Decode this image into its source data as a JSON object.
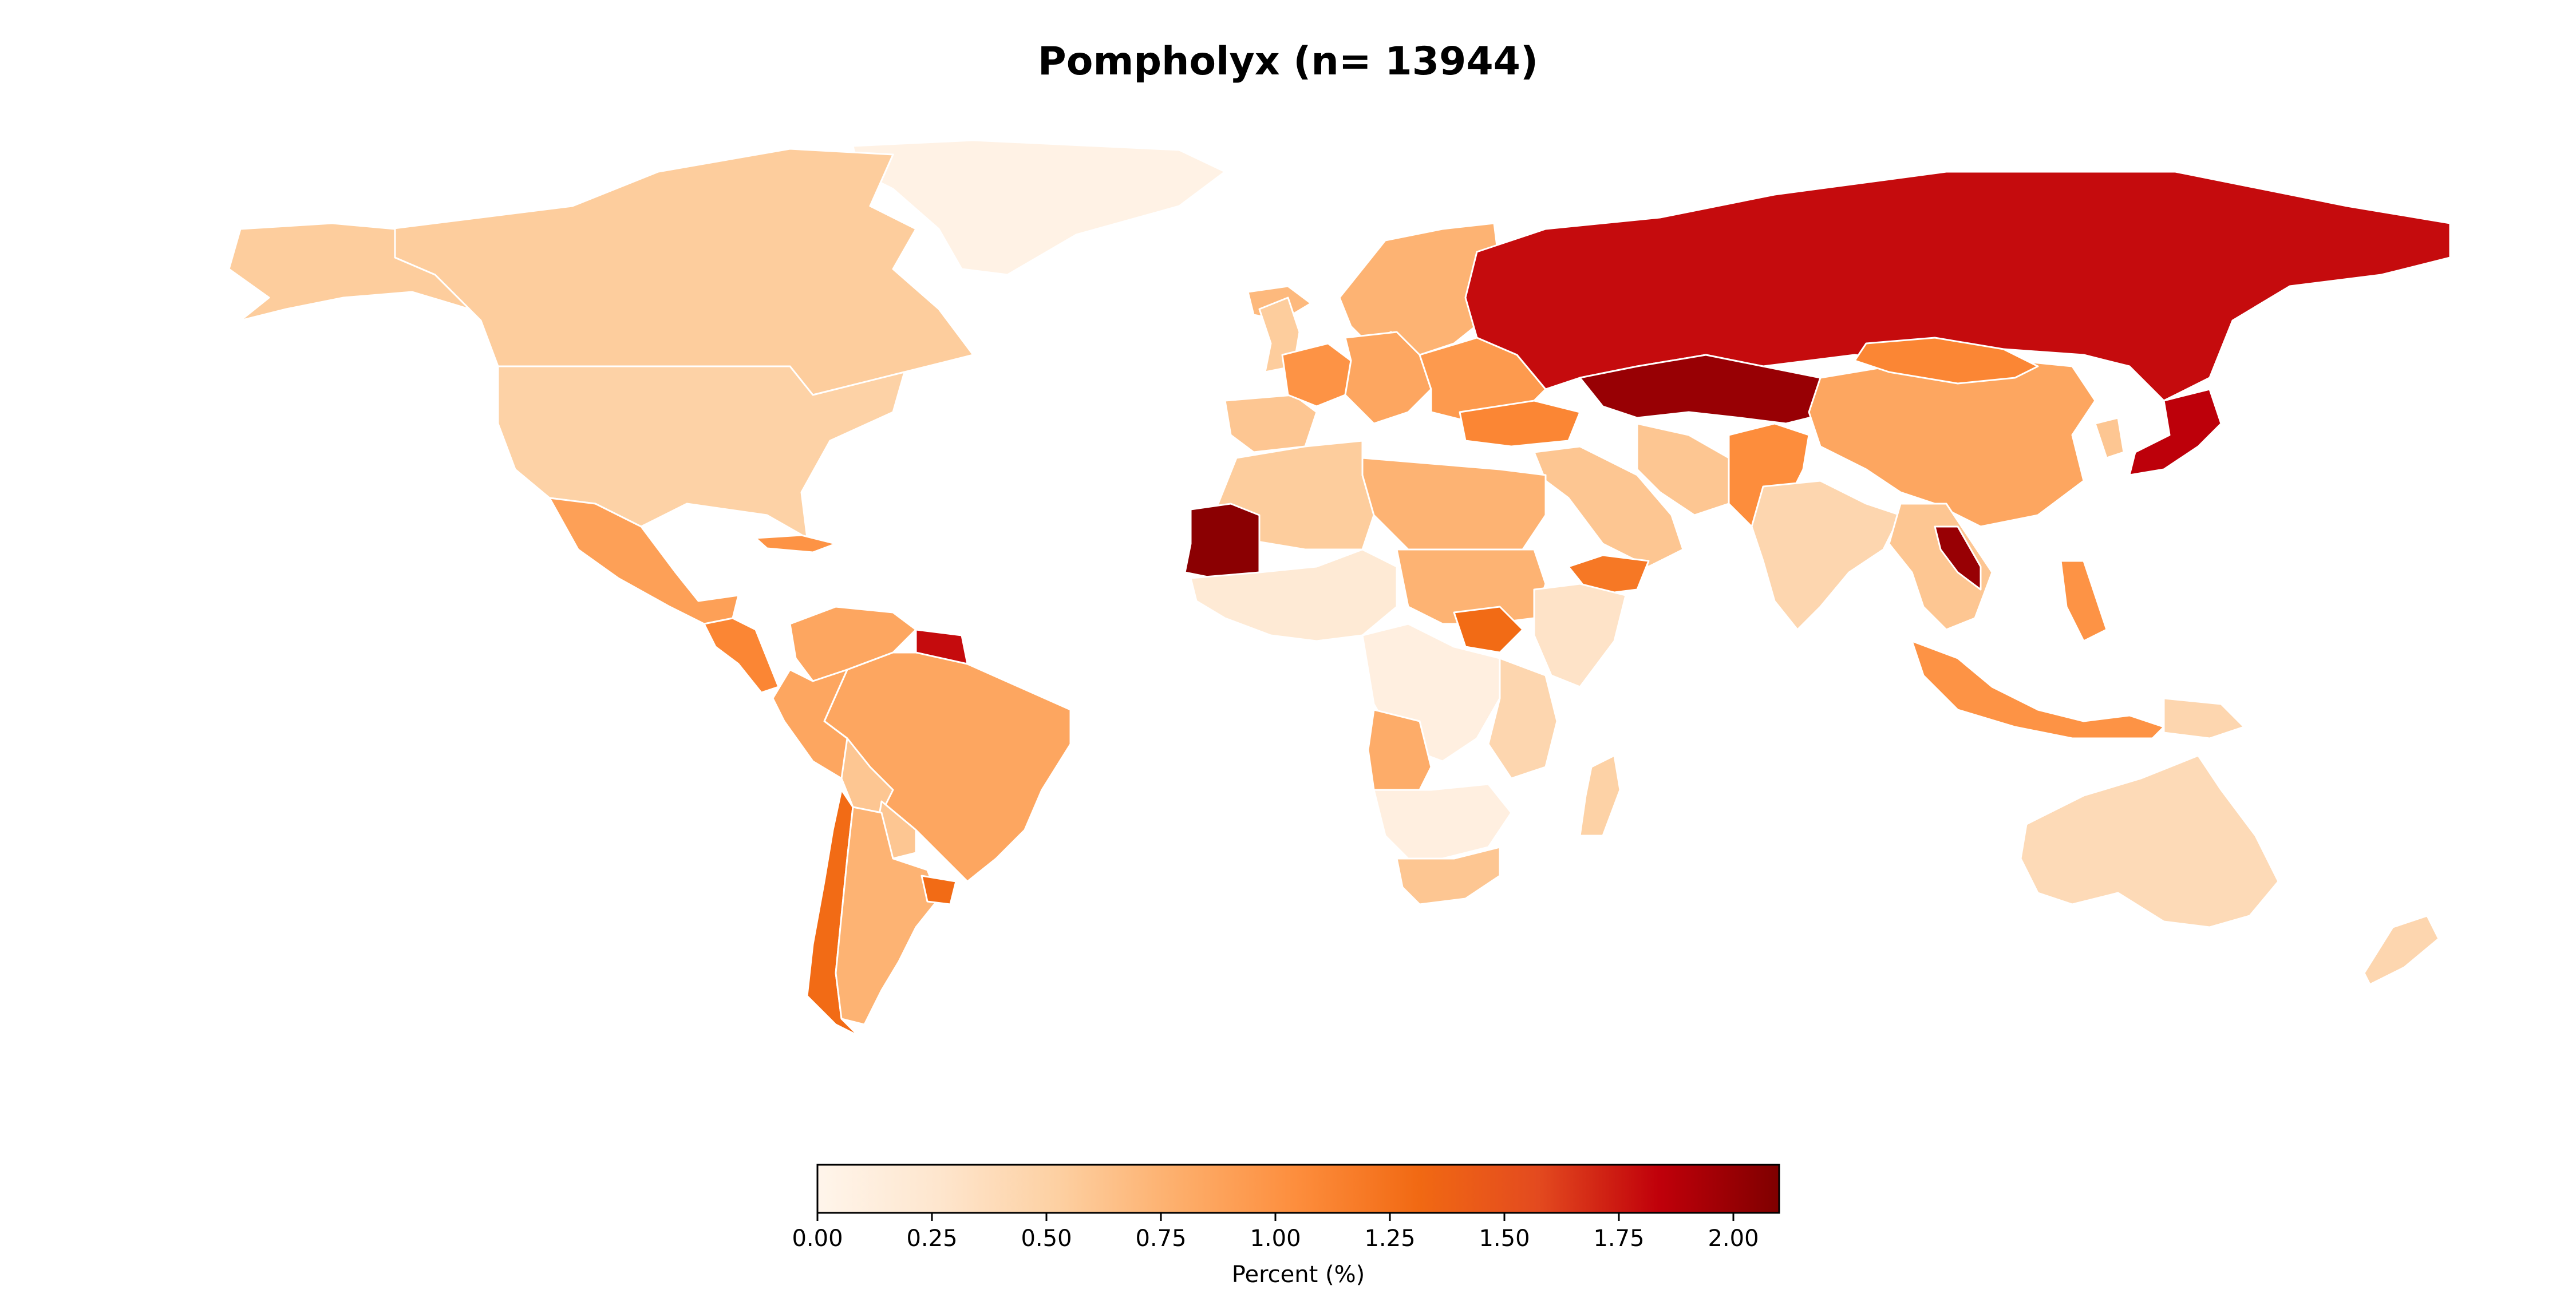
{
  "title": "Pompholyx (n= 13944)",
  "colorbar": {
    "label": "Percent (%)",
    "min": 0.0,
    "max": 2.1,
    "ticks": [
      "0.00",
      "0.25",
      "0.50",
      "0.75",
      "1.00",
      "1.25",
      "1.50",
      "1.75",
      "2.00"
    ],
    "tick_values": [
      0.0,
      0.25,
      0.5,
      0.75,
      1.0,
      1.25,
      1.5,
      1.75,
      2.0
    ],
    "colormap": [
      "#fff5eb",
      "#fee6ce",
      "#fdd0a2",
      "#fdae6b",
      "#fd8d3c",
      "#f16913",
      "#e34a1f",
      "#c0000a",
      "#7f0000"
    ]
  },
  "chart_data": {
    "type": "choropleth",
    "title": "Pompholyx (n= 13944)",
    "colorbar_label": "Percent (%)",
    "range": [
      0.0,
      2.1
    ],
    "regions": [
      {
        "name": "Greenland",
        "value": 0.05
      },
      {
        "name": "Canada",
        "value": 0.55
      },
      {
        "name": "Alaska (USA)",
        "value": 0.55
      },
      {
        "name": "United States",
        "value": 0.5
      },
      {
        "name": "Mexico",
        "value": 0.9
      },
      {
        "name": "Central America",
        "value": 1.1
      },
      {
        "name": "Caribbean",
        "value": 1.0
      },
      {
        "name": "Colombia/Venezuela",
        "value": 0.85
      },
      {
        "name": "Guyana/Suriname",
        "value": 1.8
      },
      {
        "name": "Brazil",
        "value": 0.85
      },
      {
        "name": "Peru/Ecuador",
        "value": 0.85
      },
      {
        "name": "Bolivia",
        "value": 0.6
      },
      {
        "name": "Paraguay",
        "value": 0.6
      },
      {
        "name": "Chile",
        "value": 1.3
      },
      {
        "name": "Argentina",
        "value": 0.75
      },
      {
        "name": "Uruguay",
        "value": 1.3
      },
      {
        "name": "Iceland",
        "value": 0.7
      },
      {
        "name": "Norway/Sweden/Finland",
        "value": 0.75
      },
      {
        "name": "United Kingdom",
        "value": 0.55
      },
      {
        "name": "Spain/Portugal",
        "value": 0.6
      },
      {
        "name": "France",
        "value": 1.0
      },
      {
        "name": "Central Europe",
        "value": 0.85
      },
      {
        "name": "Eastern Europe",
        "value": 0.95
      },
      {
        "name": "Russia",
        "value": 1.8
      },
      {
        "name": "Kazakhstan",
        "value": 2.0
      },
      {
        "name": "Turkey",
        "value": 1.1
      },
      {
        "name": "Middle East",
        "value": 0.6
      },
      {
        "name": "Yemen",
        "value": 1.2
      },
      {
        "name": "Iran",
        "value": 0.6
      },
      {
        "name": "Afghanistan/Pakistan",
        "value": 1.05
      },
      {
        "name": "India",
        "value": 0.45
      },
      {
        "name": "China",
        "value": 0.85
      },
      {
        "name": "Mongolia",
        "value": 1.1
      },
      {
        "name": "Japan",
        "value": 1.85
      },
      {
        "name": "Korea",
        "value": 0.6
      },
      {
        "name": "Southeast Asia",
        "value": 0.6
      },
      {
        "name": "Laos",
        "value": 2.0
      },
      {
        "name": "Philippines",
        "value": 1.0
      },
      {
        "name": "Indonesia",
        "value": 1.0
      },
      {
        "name": "Papua New Guinea",
        "value": 0.45
      },
      {
        "name": "Australia",
        "value": 0.4
      },
      {
        "name": "New Zealand",
        "value": 0.45
      },
      {
        "name": "North Africa",
        "value": 0.55
      },
      {
        "name": "Libya/Egypt",
        "value": 0.75
      },
      {
        "name": "Mauritania",
        "value": 2.05
      },
      {
        "name": "West Africa",
        "value": 0.2
      },
      {
        "name": "Sudan/Chad",
        "value": 0.75
      },
      {
        "name": "South Sudan",
        "value": 1.3
      },
      {
        "name": "Ethiopia/Somalia",
        "value": 0.3
      },
      {
        "name": "Central Africa",
        "value": 0.1
      },
      {
        "name": "East Africa",
        "value": 0.45
      },
      {
        "name": "Angola",
        "value": 0.8
      },
      {
        "name": "Southern Africa",
        "value": 0.1
      },
      {
        "name": "South Africa",
        "value": 0.6
      },
      {
        "name": "Madagascar",
        "value": 0.5
      }
    ]
  }
}
